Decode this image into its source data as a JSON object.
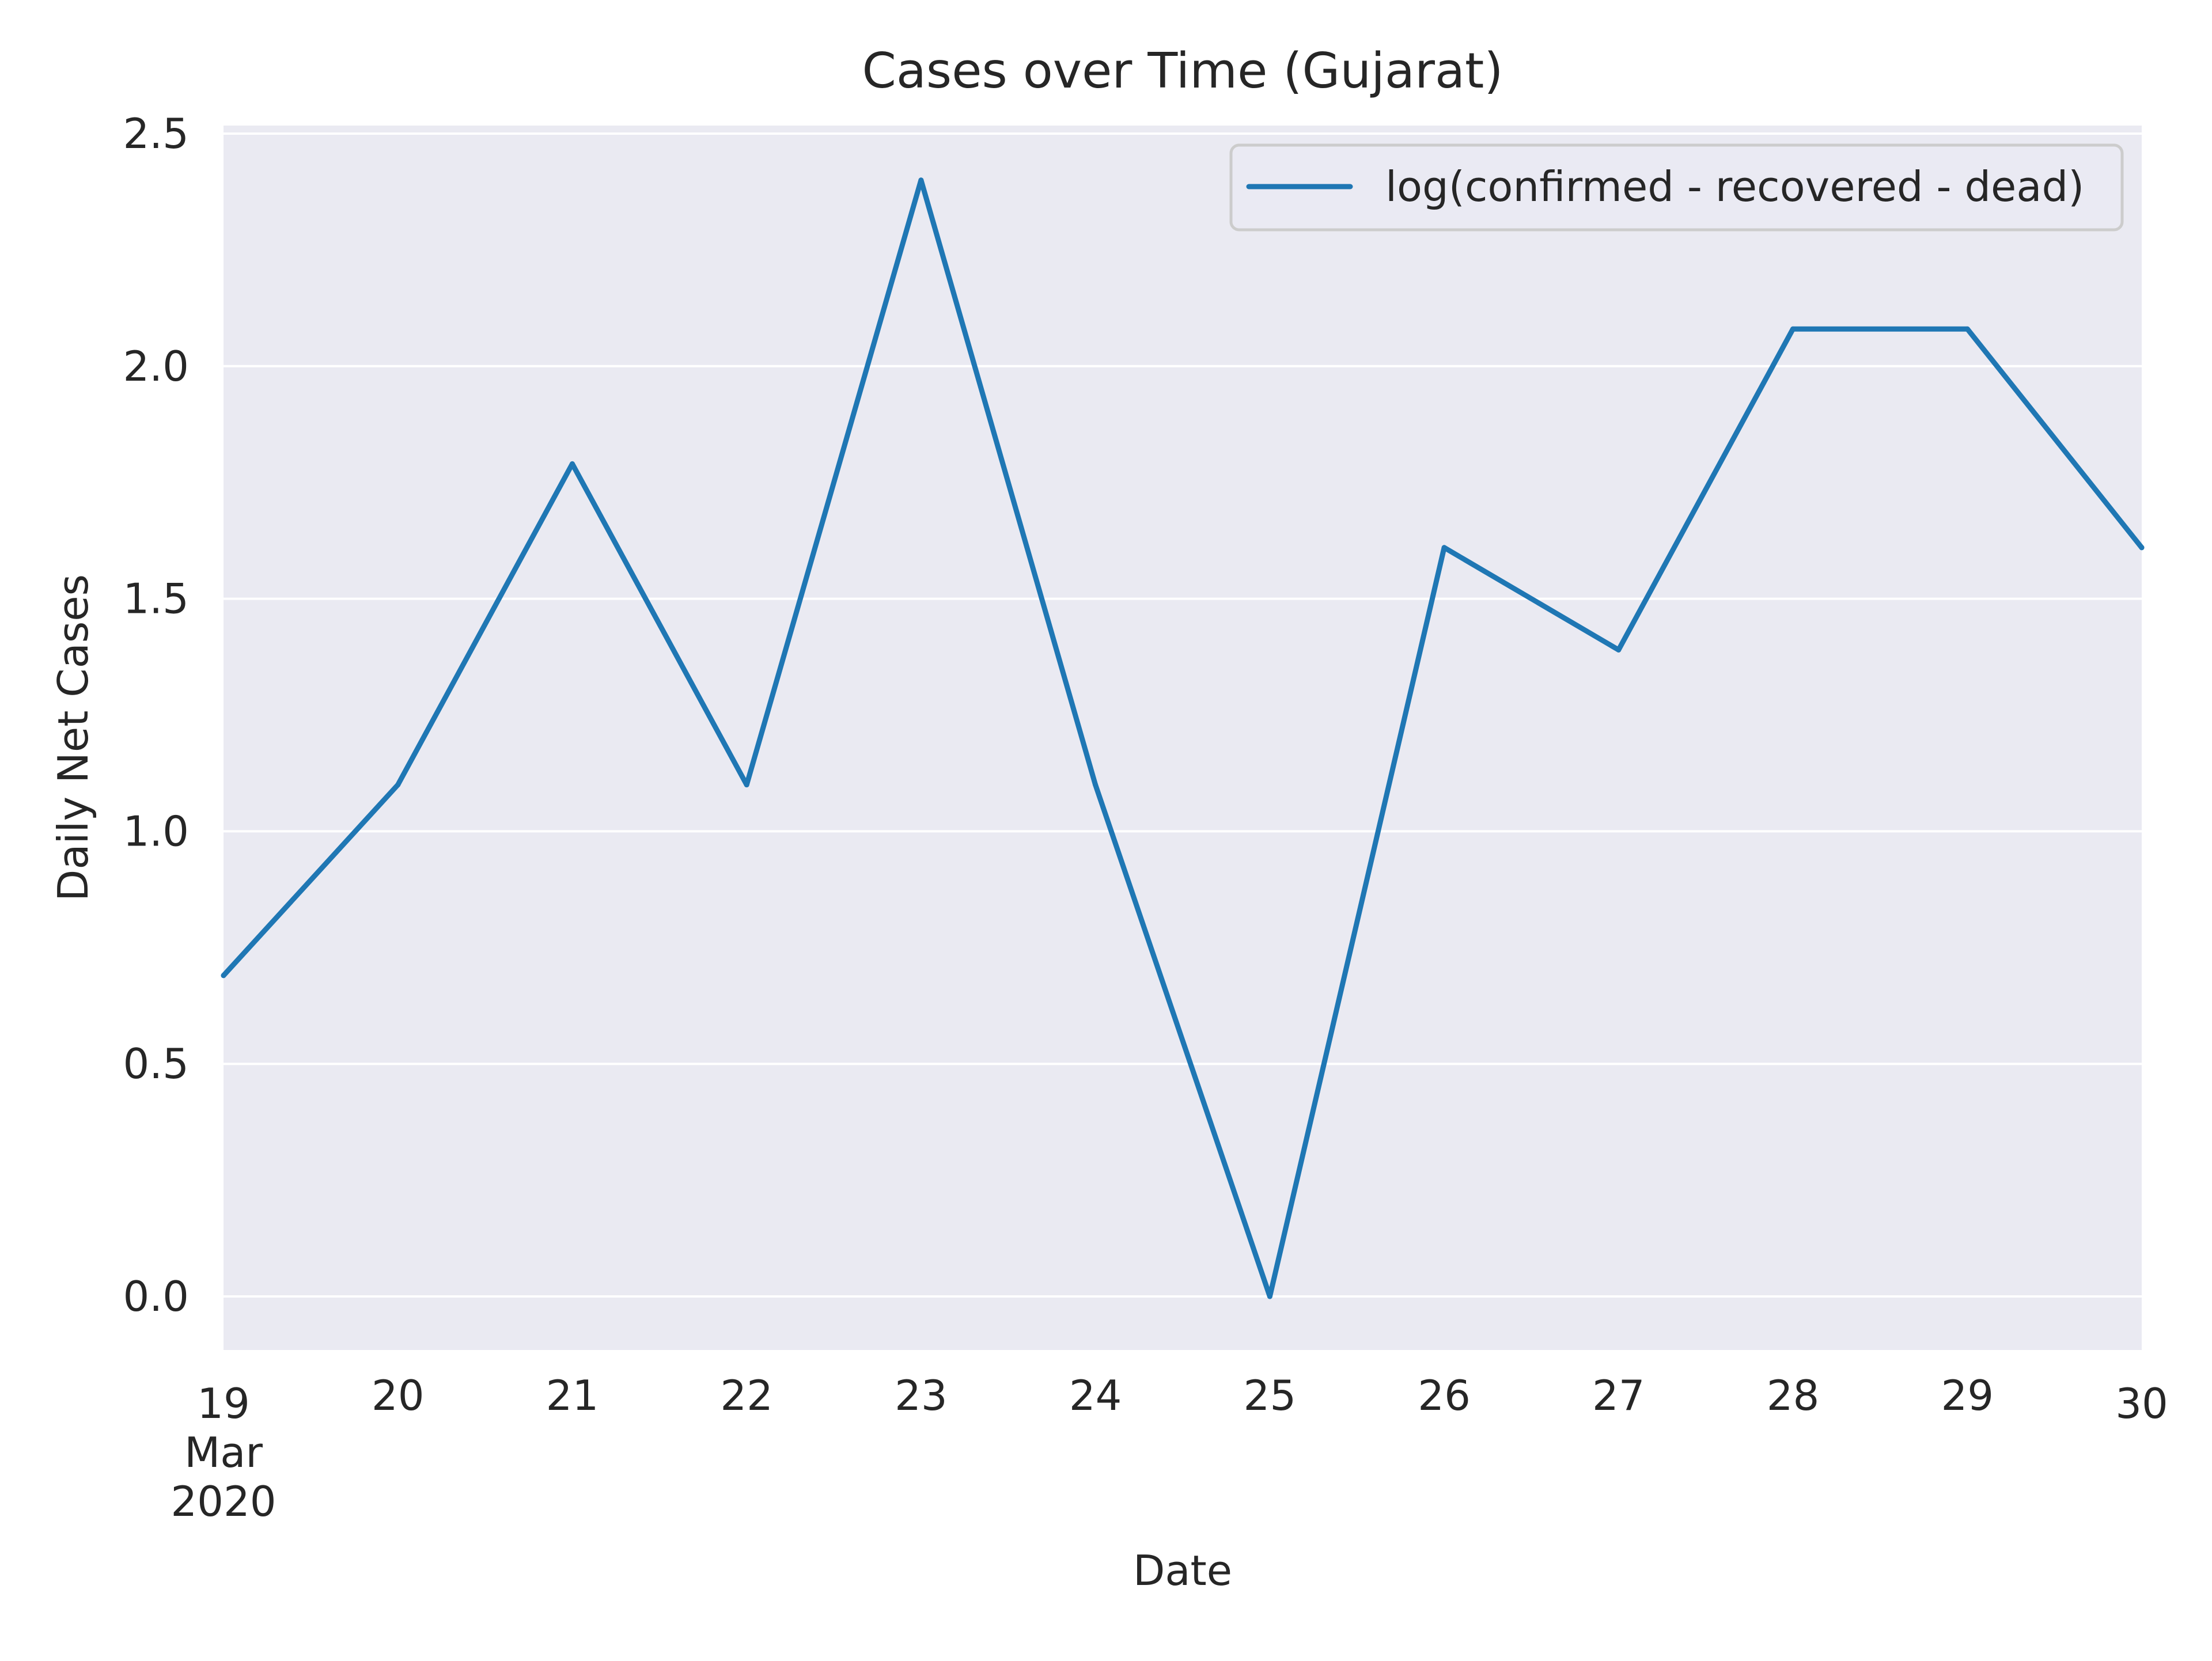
{
  "chart_data": {
    "type": "line",
    "title": "Cases over Time (Gujarat)",
    "xlabel": "Date",
    "ylabel": "Daily Net Cases",
    "x": [
      "2020-03-19",
      "2020-03-20",
      "2020-03-21",
      "2020-03-22",
      "2020-03-23",
      "2020-03-24",
      "2020-03-25",
      "2020-03-26",
      "2020-03-27",
      "2020-03-28",
      "2020-03-29",
      "2020-03-30"
    ],
    "x_tick_labels": [
      [
        "19",
        "Mar",
        "2020"
      ],
      [
        "20"
      ],
      [
        "21"
      ],
      [
        "22"
      ],
      [
        "23"
      ],
      [
        "24"
      ],
      [
        "25"
      ],
      [
        "26"
      ],
      [
        "27"
      ],
      [
        "28"
      ],
      [
        "29"
      ],
      [
        "30"
      ]
    ],
    "xlim": [
      "2020-03-19",
      "2020-03-30"
    ],
    "ylim": [
      -0.11,
      2.5
    ],
    "yticks": [
      0.0,
      0.5,
      1.0,
      1.5,
      2.0,
      2.5
    ],
    "ytick_labels": [
      "0.0",
      "0.5",
      "1.0",
      "1.5",
      "2.0",
      "2.5"
    ],
    "grid": true,
    "legend_position": "top-right",
    "series": [
      {
        "name": "log(confirmed - recovered - dead)",
        "color": "#1f77b4",
        "values": [
          0.69,
          1.1,
          1.79,
          1.1,
          2.4,
          1.1,
          0.0,
          1.61,
          1.39,
          2.08,
          2.08,
          1.61
        ]
      }
    ]
  },
  "colors": {
    "plot_background": "#eaeaf2",
    "grid": "#ffffff",
    "text": "#262626",
    "legend_border": "#cccccc",
    "line": "#1f77b4"
  }
}
